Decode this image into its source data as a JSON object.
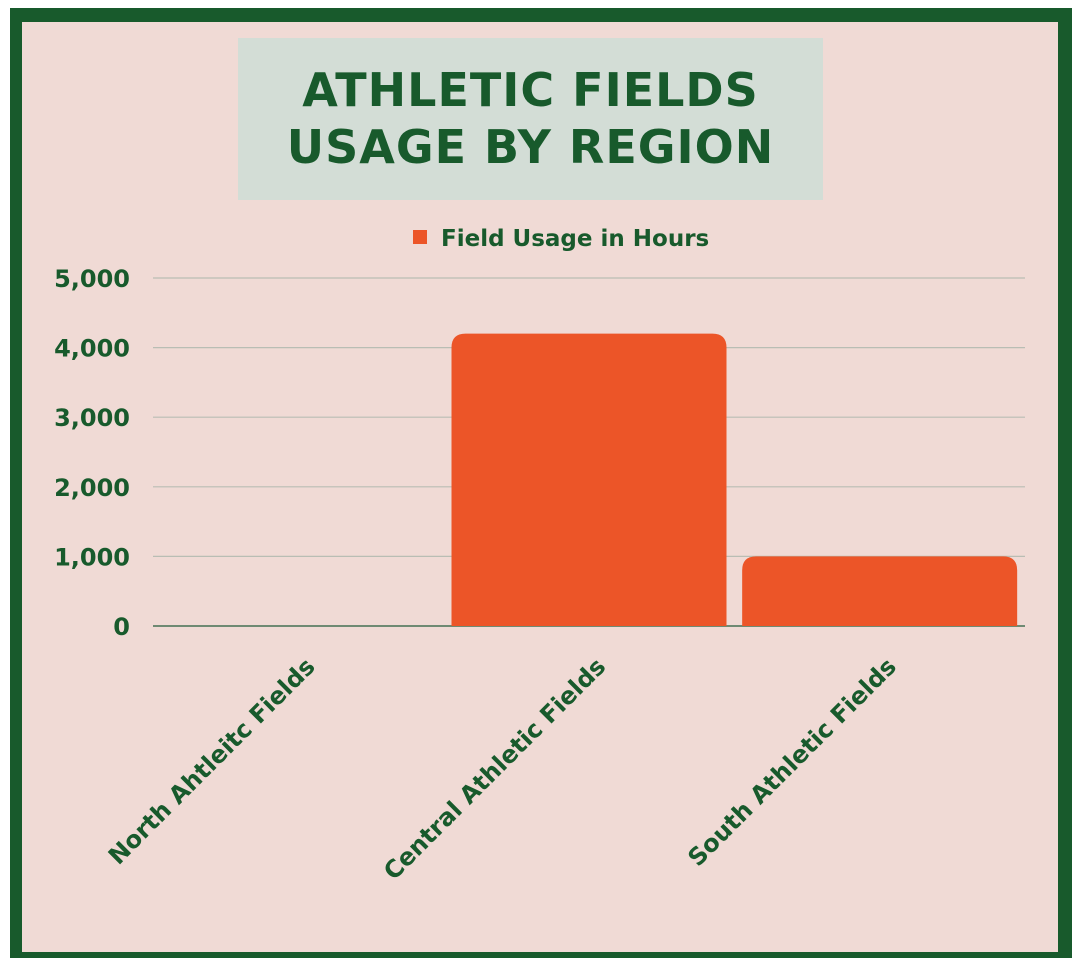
{
  "chart_data": {
    "type": "bar",
    "title": "ATHLETIC FIELDS\nUSAGE BY REGION",
    "categories": [
      "North Ahtleitc Fields",
      "Central Athletic Fields",
      "South Athletic Fields"
    ],
    "series": [
      {
        "name": "Field Usage in Hours",
        "values": [
          0,
          4200,
          1000
        ],
        "color": "#ec5528"
      }
    ],
    "yticks": [
      "0",
      "1,000",
      "2,000",
      "3,000",
      "4,000",
      "5,000"
    ],
    "ylim": [
      0,
      5000
    ],
    "grid": true,
    "legend": "top-center"
  },
  "colors": {
    "frame": "#185a2c",
    "background": "#f0dad5",
    "title_box": "#d3ddd6",
    "text": "#185a2c",
    "grid": "#b9bdb4"
  }
}
